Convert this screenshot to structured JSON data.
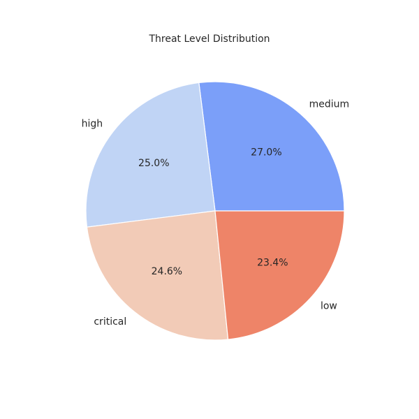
{
  "chart_data": {
    "type": "pie",
    "title": "Threat Level Distribution",
    "slices": [
      {
        "label": "medium",
        "value": 27.0,
        "pct_text": "27.0%",
        "color": "#7b9ff9"
      },
      {
        "label": "high",
        "value": 25.0,
        "pct_text": "25.0%",
        "color": "#c0d4f5"
      },
      {
        "label": "critical",
        "value": 24.6,
        "pct_text": "24.6%",
        "color": "#f2cbb7"
      },
      {
        "label": "low",
        "value": 23.4,
        "pct_text": "23.4%",
        "color": "#ee8468"
      }
    ],
    "start_angle_deg": 0,
    "direction": "counterclockwise",
    "legend": "none"
  }
}
